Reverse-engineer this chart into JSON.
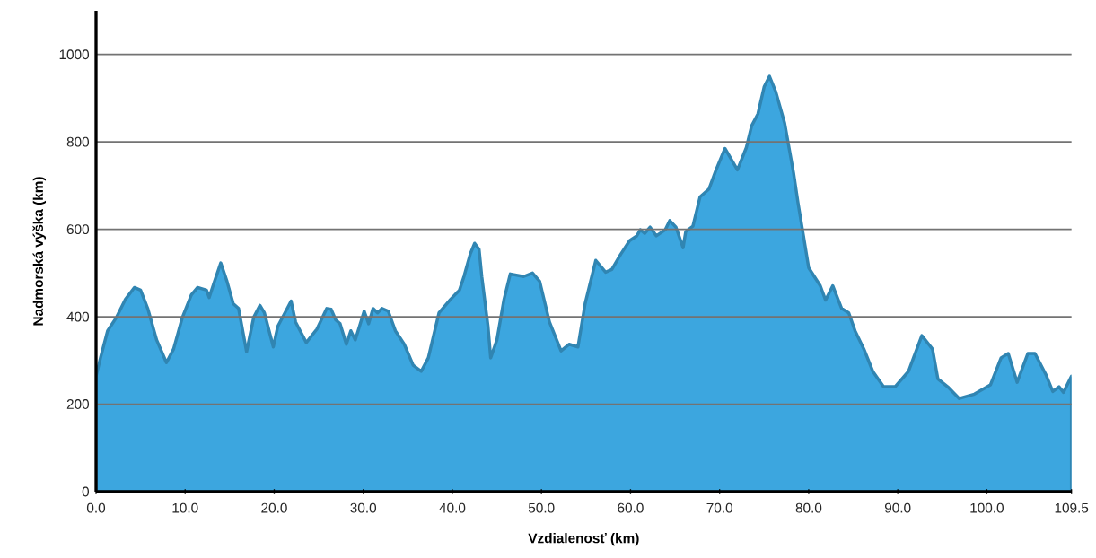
{
  "chart_data": {
    "type": "area",
    "xlabel": "Vzdialenosť (km)",
    "ylabel": "Nadmorská výška (km)",
    "color": "#3ca6df",
    "grid": "y",
    "xlim": [
      0,
      109.5
    ],
    "ylim": [
      0,
      1100
    ],
    "xticks": [
      {
        "value": 0,
        "label": "0.0"
      },
      {
        "value": 10,
        "label": "10.0"
      },
      {
        "value": 20,
        "label": "20.0"
      },
      {
        "value": 30,
        "label": "30.0"
      },
      {
        "value": 40,
        "label": "40.0"
      },
      {
        "value": 50,
        "label": "50.0"
      },
      {
        "value": 60,
        "label": "60.0"
      },
      {
        "value": 70,
        "label": "70.0"
      },
      {
        "value": 80,
        "label": "80.0"
      },
      {
        "value": 90,
        "label": "90.0"
      },
      {
        "value": 100,
        "label": "100.0"
      },
      {
        "value": 109.5,
        "label": "109.5"
      }
    ],
    "yticks": [
      0,
      200,
      400,
      600,
      800,
      1000
    ],
    "x": [
      0,
      0.5,
      1.3,
      2.3,
      3.3,
      4.3,
      5.0,
      5.8,
      6.8,
      7.9,
      8.7,
      9.7,
      10.7,
      11.4,
      12.4,
      12.7,
      13.2,
      14.0,
      14.7,
      15.4,
      16.0,
      16.9,
      17.7,
      18.4,
      18.9,
      19.9,
      20.4,
      21.2,
      21.9,
      22.4,
      23.6,
      24.8,
      25.9,
      26.4,
      26.9,
      27.4,
      28.1,
      28.6,
      29.1,
      30.1,
      30.6,
      31.1,
      31.6,
      32.1,
      32.8,
      33.6,
      34.6,
      35.6,
      36.5,
      37.3,
      38.5,
      39.8,
      40.8,
      41.3,
      42.0,
      42.5,
      43.0,
      43.3,
      44.0,
      44.3,
      45.0,
      45.8,
      46.5,
      48.0,
      49.0,
      49.8,
      50.9,
      52.2,
      53.1,
      54.1,
      54.9,
      56.1,
      57.2,
      57.9,
      58.9,
      59.9,
      60.7,
      61.1,
      61.6,
      62.2,
      62.9,
      63.9,
      64.4,
      65.1,
      65.9,
      66.2,
      67.0,
      67.8,
      68.8,
      69.6,
      70.6,
      72.0,
      73.0,
      73.6,
      74.3,
      75.0,
      75.6,
      76.3,
      77.3,
      78.3,
      78.8,
      80.0,
      81.3,
      81.9,
      82.7,
      83.7,
      84.5,
      85.2,
      86.2,
      87.2,
      88.4,
      89.7,
      91.2,
      92.7,
      93.9,
      94.5,
      95.6,
      96.9,
      98.6,
      100.4,
      101.6,
      102.4,
      103.4,
      104.6,
      105.4,
      106.6,
      107.4,
      108.1,
      108.6,
      109.5
    ],
    "values": [
      264,
      306,
      368,
      399,
      440,
      467,
      461,
      419,
      347,
      295,
      326,
      399,
      450,
      467,
      461,
      444,
      475,
      523,
      481,
      430,
      419,
      320,
      399,
      426,
      409,
      331,
      378,
      409,
      436,
      388,
      341,
      372,
      419,
      417,
      393,
      384,
      337,
      368,
      347,
      413,
      384,
      419,
      409,
      419,
      413,
      368,
      337,
      289,
      275,
      306,
      409,
      440,
      461,
      492,
      543,
      568,
      554,
      492,
      378,
      306,
      347,
      440,
      498,
      492,
      500,
      481,
      388,
      322,
      337,
      331,
      430,
      529,
      502,
      508,
      543,
      574,
      585,
      599,
      591,
      605,
      585,
      599,
      620,
      605,
      558,
      595,
      607,
      674,
      692,
      736,
      785,
      736,
      787,
      837,
      864,
      926,
      950,
      915,
      843,
      729,
      661,
      512,
      471,
      438,
      471,
      419,
      409,
      368,
      326,
      275,
      240,
      240,
      275,
      357,
      326,
      258,
      240,
      213,
      223,
      244,
      306,
      316,
      250,
      316,
      316,
      269,
      229,
      240,
      227,
      264
    ]
  }
}
